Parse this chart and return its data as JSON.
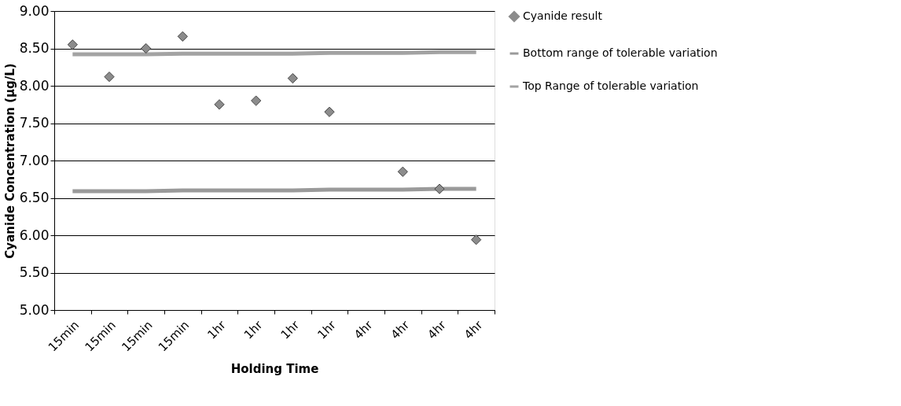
{
  "chart_data": {
    "type": "scatter",
    "xlabel": "Holding Time",
    "ylabel": "Cyanide Concentration (µg/L)",
    "categories": [
      "15min",
      "15min",
      "15min",
      "15min",
      "1hr",
      "1hr",
      "1hr",
      "1hr",
      "4hr",
      "4hr",
      "4hr",
      "4hr"
    ],
    "series": [
      {
        "name": "Cyanide result",
        "marker": "diamond",
        "color": "#8c8c8c",
        "values": [
          8.55,
          8.12,
          8.5,
          8.66,
          7.75,
          7.8,
          8.1,
          7.65,
          null,
          6.85,
          6.62,
          5.94
        ]
      },
      {
        "name": "Bottom range of tolerable variation",
        "type": "line",
        "marker": "none",
        "line_style": "solid",
        "color": "#9a9a9a",
        "values": [
          6.59,
          6.59,
          6.59,
          6.6,
          6.6,
          6.6,
          6.6,
          6.61,
          6.61,
          6.61,
          6.62,
          6.62
        ]
      },
      {
        "name": "Top Range of tolerable variation",
        "type": "line",
        "marker": "none",
        "line_style": "solid",
        "color": "#a3a3a3",
        "values": [
          8.42,
          8.42,
          8.42,
          8.43,
          8.43,
          8.43,
          8.43,
          8.44,
          8.44,
          8.44,
          8.45,
          8.45
        ]
      }
    ],
    "ylim": [
      5.0,
      9.0
    ],
    "yticks": [
      {
        "value": 5.0,
        "label": "5.00"
      },
      {
        "value": 5.5,
        "label": "5.50"
      },
      {
        "value": 6.0,
        "label": "6.00"
      },
      {
        "value": 6.5,
        "label": "6.50"
      },
      {
        "value": 7.0,
        "label": "7.00"
      },
      {
        "value": 7.5,
        "label": "7.50"
      },
      {
        "value": 8.0,
        "label": "8.00"
      },
      {
        "value": 8.5,
        "label": "8.50"
      },
      {
        "value": 9.0,
        "label": "9.00"
      }
    ],
    "grid": "y",
    "legend": "right"
  }
}
